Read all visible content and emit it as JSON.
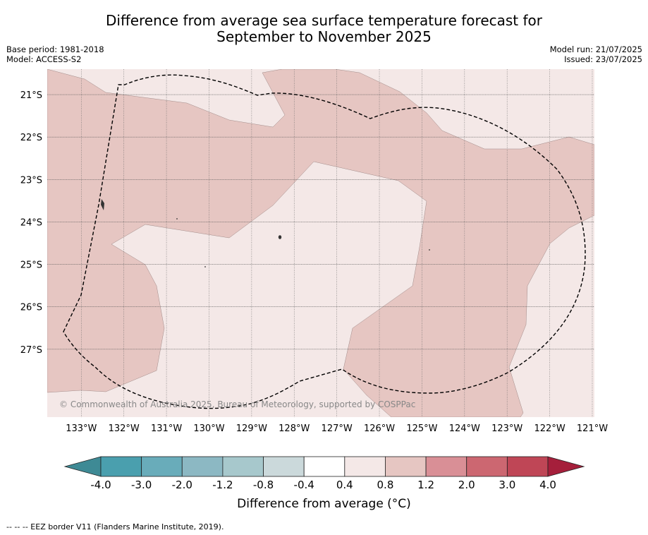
{
  "title": {
    "line1": "Difference from average sea surface temperature forecast for",
    "line2": "September to November 2025"
  },
  "meta": {
    "base_period": "Base period: 1981-2018",
    "model": "Model: ACCESS-S2",
    "model_run": "Model run: 21/07/2025",
    "issued": "Issued: 23/07/2025"
  },
  "map": {
    "lon_range": [
      -133.8,
      -120.95
    ],
    "lat_range": [
      -28.6,
      -20.4
    ],
    "lon_ticks": [
      "133°W",
      "132°W",
      "131°W",
      "130°W",
      "129°W",
      "128°W",
      "127°W",
      "126°W",
      "125°W",
      "124°W",
      "123°W",
      "122°W",
      "121°W"
    ],
    "lat_ticks": [
      "21°S",
      "22°S",
      "23°S",
      "24°S",
      "25°S",
      "26°S",
      "27°S"
    ],
    "gridlines": true,
    "copyright": "© Commonwealth of Australia 2025, Bureau of Meteorology, supported by COSPPac",
    "colors": {
      "band_0_4_0_8": "#f4e8e7",
      "band_0_8_1_2": "#e6c6c2",
      "eez_line": "#000000"
    }
  },
  "colorbar": {
    "title": "Difference from average (°C)",
    "tick_labels": [
      "-4.0",
      "-3.0",
      "-2.0",
      "-1.2",
      "-0.8",
      "-0.4",
      "0.4",
      "0.8",
      "1.2",
      "2.0",
      "3.0",
      "4.0"
    ],
    "colors": [
      "#3e8a95",
      "#4a9fae",
      "#69acba",
      "#8cb8c3",
      "#a7c8cc",
      "#cbd9db",
      "#ffffff",
      "#f4e8e7",
      "#e6c6c2",
      "#d98f96",
      "#cc6771",
      "#bf4656",
      "#a51f3b"
    ]
  },
  "footnote": "--  --  -- EEZ border V11 (Flanders Marine Institute, 2019)."
}
